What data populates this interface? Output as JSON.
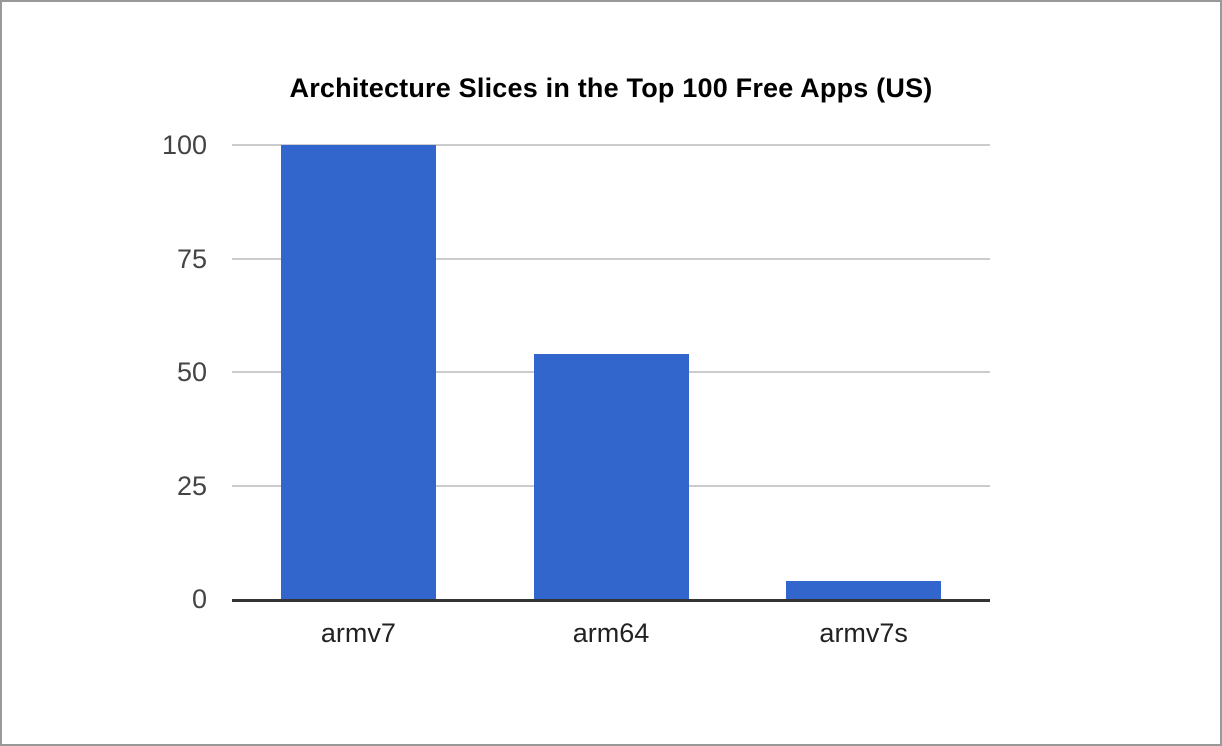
{
  "chart_data": {
    "type": "bar",
    "title": "Architecture Slices in the Top 100 Free Apps (US)",
    "categories": [
      "armv7",
      "arm64",
      "armv7s"
    ],
    "values": [
      100,
      54,
      4
    ],
    "xlabel": "",
    "ylabel": "",
    "ylim": [
      0,
      100
    ],
    "yticks": [
      100,
      75,
      50,
      25,
      0
    ],
    "grid": true,
    "legend": "none"
  },
  "colors": {
    "bar": "#3366cc",
    "gridline": "#cccccc",
    "axis_baseline": "#333333",
    "title_text": "#000000",
    "y_tick_text": "#444444",
    "x_label_text": "#222222",
    "frame_border": "#999999",
    "background": "#ffffff"
  }
}
